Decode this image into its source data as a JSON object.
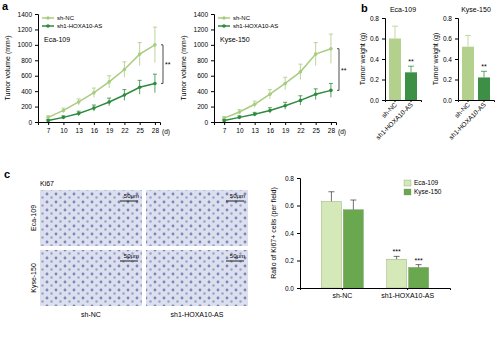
{
  "chart_data": [
    {
      "type": "line",
      "panel": "a",
      "title": "Eca-109",
      "x": [
        7,
        10,
        13,
        16,
        19,
        22,
        25,
        28
      ],
      "xlim": [
        5,
        29
      ],
      "xticks": [
        7,
        10,
        13,
        16,
        19,
        22,
        25,
        28
      ],
      "x_label": "(d)",
      "y_label": "Tumor volume (mm³)",
      "ylim": [
        0,
        1400
      ],
      "yticks": [
        0,
        200,
        400,
        600,
        800,
        1000,
        1200,
        1400
      ],
      "legend": "top-left",
      "annotations": [
        "**"
      ],
      "series": [
        {
          "name": "sh-NC",
          "color": "#a9cc7f",
          "marker": "circle",
          "values": [
            60,
            150,
            260,
            380,
            520,
            680,
            880,
            1000
          ],
          "errors": [
            20,
            30,
            40,
            60,
            80,
            100,
            150,
            230
          ]
        },
        {
          "name": "sh1-HOXA10-AS",
          "color": "#2e8b3e",
          "marker": "circle",
          "values": [
            20,
            60,
            110,
            180,
            260,
            350,
            450,
            500
          ],
          "errors": [
            10,
            20,
            30,
            40,
            50,
            70,
            90,
            120
          ]
        }
      ]
    },
    {
      "type": "line",
      "title": "Kyse-150",
      "x": [
        7,
        10,
        13,
        16,
        19,
        22,
        25,
        28
      ],
      "xlim": [
        5,
        29
      ],
      "xticks": [
        7,
        10,
        13,
        16,
        19,
        22,
        25,
        28
      ],
      "x_label": "(d)",
      "y_label": "Tumor volume (mm³)",
      "ylim": [
        0,
        1400
      ],
      "yticks": [
        0,
        200,
        400,
        600,
        800,
        1000,
        1200,
        1400
      ],
      "legend": "top-left",
      "annotations": [
        "**"
      ],
      "series": [
        {
          "name": "sh-NC",
          "color": "#a9cc7f",
          "marker": "circle",
          "values": [
            50,
            130,
            230,
            360,
            500,
            650,
            880,
            950
          ],
          "errors": [
            20,
            30,
            40,
            60,
            80,
            100,
            150,
            190
          ]
        },
        {
          "name": "sh1-HOXA10-AS",
          "color": "#2e8b3e",
          "marker": "circle",
          "values": [
            20,
            60,
            100,
            150,
            210,
            280,
            360,
            410
          ],
          "errors": [
            10,
            20,
            25,
            35,
            45,
            60,
            70,
            90
          ]
        }
      ]
    },
    {
      "type": "bar",
      "panel": "b",
      "title": "Eca-109",
      "y_label": "Tumor weight (g)",
      "categories": [
        "sh-NC",
        "sh1-HOXA10-AS"
      ],
      "values": [
        0.6,
        0.27
      ],
      "errors": [
        0.12,
        0.06
      ],
      "colors": [
        "#b3d08c",
        "#3e8f46"
      ],
      "ylim": [
        0,
        0.8
      ],
      "yticks": [
        {
          "value": 0,
          "label": "0.0"
        },
        0.2,
        0.4,
        0.6,
        0.8
      ],
      "annotations": [
        "**"
      ]
    },
    {
      "type": "bar",
      "title": "Kyse-150",
      "y_label": "Tumor weight (g)",
      "categories": [
        "sh-NC",
        "sh1-HOXA10-AS"
      ],
      "values": [
        0.52,
        0.22
      ],
      "errors": [
        0.11,
        0.06
      ],
      "colors": [
        "#b3d08c",
        "#3e8f46"
      ],
      "ylim": [
        0,
        0.8
      ],
      "yticks": [
        {
          "value": 0,
          "label": "0.0"
        },
        0.2,
        0.4,
        0.6,
        0.8
      ],
      "annotations": [
        "**"
      ]
    },
    {
      "type": "bar",
      "y_label": "Ratio of Ki67+ cells (per field)",
      "categories": [
        "sh-NC",
        "sh1-HOXA10-AS"
      ],
      "ylim": [
        0,
        0.8
      ],
      "yticks": [
        {
          "value": 0,
          "label": "0.0"
        },
        0.2,
        0.4,
        0.6,
        0.8
      ],
      "legend": "top-right",
      "annotations": [
        "***",
        "***"
      ],
      "series": [
        {
          "name": "Eca-109",
          "color": "#d5e8b8",
          "values": [
            0.63,
            0.21
          ],
          "errors": [
            0.07,
            0.02
          ]
        },
        {
          "name": "Kyse-150",
          "color": "#6aa84f",
          "values": [
            0.57,
            0.15
          ],
          "errors": [
            0.07,
            0.02
          ]
        }
      ]
    }
  ],
  "images": {
    "panel": "c",
    "stain": "Ki67",
    "rows": [
      "Eca-109",
      "Kyse-150"
    ],
    "columns": [
      "sh-NC",
      "sh1-HOXA10-AS"
    ],
    "scale_bar": "50μm"
  }
}
